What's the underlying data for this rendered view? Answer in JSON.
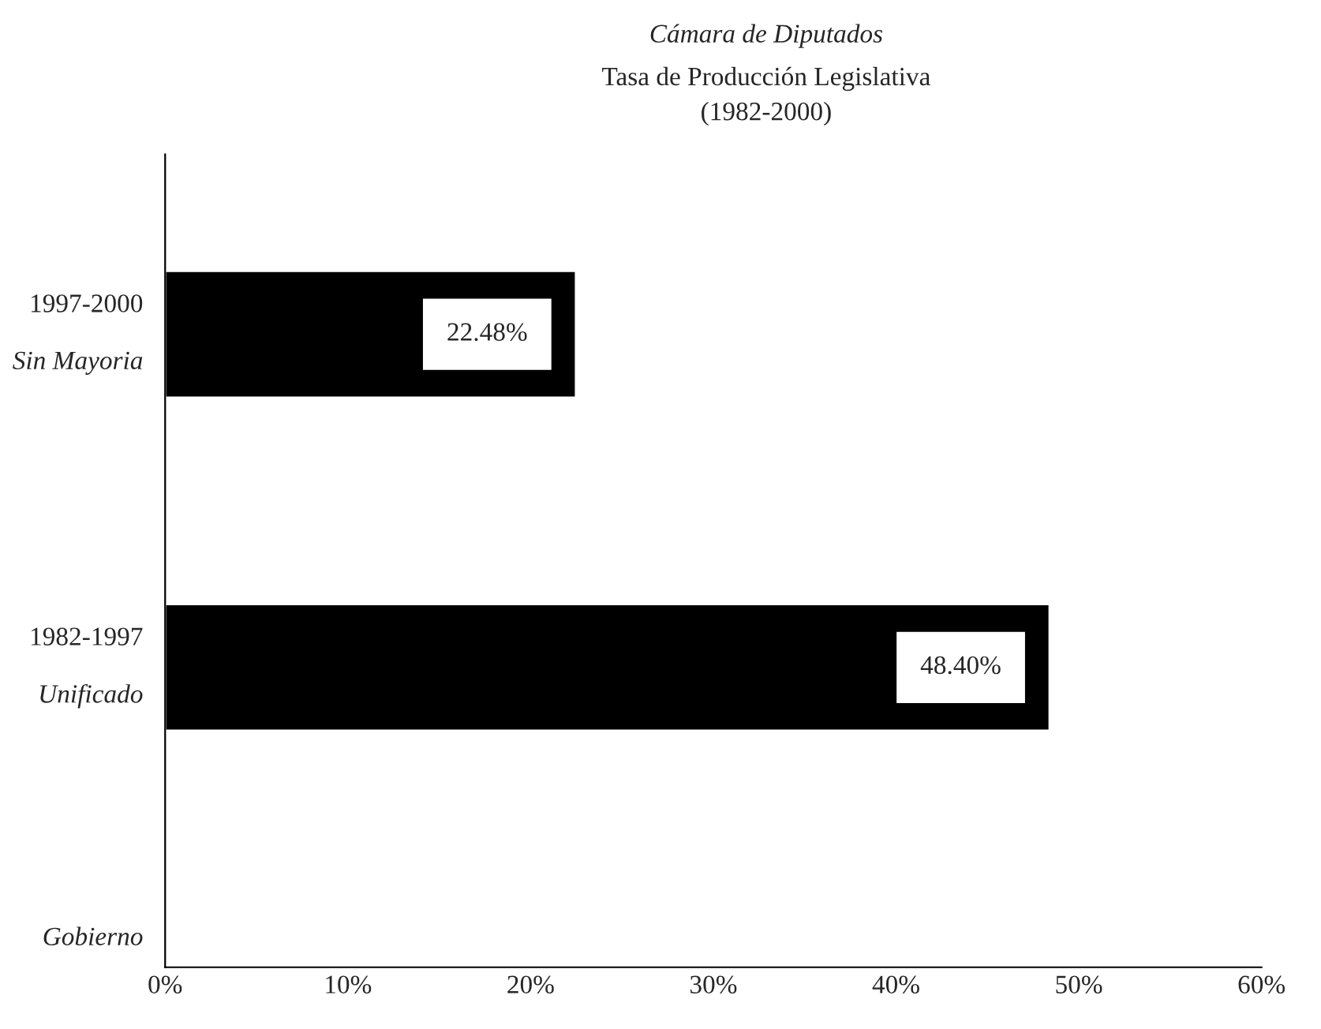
{
  "chart_data": {
    "type": "bar",
    "orientation": "horizontal",
    "title": "Cámara de Diputados",
    "subtitle": "Tasa de Producción Legislativa\n(1982-2000)",
    "ylabel": "Gobierno",
    "categories": [
      "1997-2000\nSin Mayoria",
      "1982-1997\nUnificado"
    ],
    "values": [
      22.48,
      48.4
    ],
    "color": "#000000",
    "value_labels": [
      "22.48%",
      "48.40%"
    ],
    "xlim": [
      0,
      60
    ],
    "xticks": [
      {
        "value": 0,
        "label": "0%"
      },
      {
        "value": 10,
        "label": "10%"
      },
      {
        "value": 20,
        "label": "20%"
      },
      {
        "value": 30,
        "label": "30%"
      },
      {
        "value": 40,
        "label": "40%"
      },
      {
        "value": 50,
        "label": "50%"
      },
      {
        "value": 60,
        "label": "60%"
      }
    ],
    "grid": false
  }
}
